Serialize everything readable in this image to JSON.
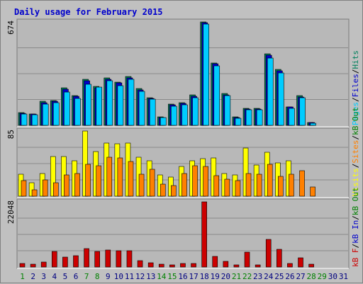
{
  "colors": {
    "background": "#c0c0c0",
    "panel": "#b8b8b8",
    "grid": "#8a8a8a",
    "title": "#0000cc",
    "hits": "#00805c",
    "files": "#0000cc",
    "pages": "#00ccff",
    "visits": "#ffff00",
    "sites": "#ff8000",
    "kb_out": "#008000",
    "kb_in": "#0000cc",
    "kb_f": "#cc0000",
    "weekend": "#008000",
    "weekday": "#000080"
  },
  "chart_data": {
    "type": "bar",
    "title": "Daily usage for February 2015",
    "days": [
      "1",
      "2",
      "3",
      "4",
      "5",
      "6",
      "7",
      "8",
      "9",
      "10",
      "11",
      "12",
      "13",
      "14",
      "15",
      "16",
      "17",
      "18",
      "19",
      "20",
      "21",
      "22",
      "23",
      "24",
      "25",
      "26",
      "27",
      "28",
      "29",
      "30",
      "31"
    ],
    "weekend_days": [
      "1",
      "7",
      "8",
      "14",
      "15",
      "21",
      "22",
      "28",
      "29"
    ],
    "panels": [
      {
        "axis_max_label": "674",
        "ymax": 674,
        "legend": [
          {
            "label": "Pages",
            "color": "#00ccff"
          },
          {
            "label": "/",
            "color": "#000000"
          },
          {
            "label": "Files",
            "color": "#0000cc"
          },
          {
            "label": "/",
            "color": "#000000"
          },
          {
            "label": "Hits",
            "color": "#00805c"
          }
        ],
        "series": [
          {
            "name": "Hits",
            "color": "#00805c",
            "values": [
              84,
              75,
              155,
              162,
              243,
              194,
              299,
              253,
              307,
              281,
              319,
              238,
              181,
              55,
              137,
              148,
              198,
              674,
              407,
              207,
              55,
              111,
              110,
              468,
              367,
              122,
              192,
              20,
              0,
              0,
              0
            ]
          },
          {
            "name": "Files",
            "color": "#0000cc",
            "values": [
              80,
              72,
              150,
              158,
              235,
              188,
              290,
              245,
              300,
              275,
              310,
              232,
              176,
              52,
              132,
              142,
              190,
              668,
              400,
              200,
              52,
              108,
              107,
              456,
              356,
              118,
              186,
              18,
              0,
              0,
              0
            ]
          },
          {
            "name": "Pages",
            "color": "#00ccff",
            "values": [
              75,
              68,
              140,
              150,
              215,
              175,
              270,
              248,
              290,
              260,
              300,
              220,
              170,
              50,
              125,
              135,
              180,
              660,
              390,
              195,
              45,
              100,
              100,
              440,
              340,
              112,
              180,
              15,
              0,
              0,
              0
            ]
          }
        ]
      },
      {
        "axis_max_label": "85",
        "ymax": 85,
        "legend": [
          {
            "label": "Visits",
            "color": "#ffff00"
          },
          {
            "label": "/",
            "color": "#000000"
          },
          {
            "label": "Sites",
            "color": "#ff8000"
          },
          {
            "label": "/",
            "color": "#000000"
          },
          {
            "label": "kB Out",
            "color": "#008000"
          }
        ],
        "series": [
          {
            "name": "Visits",
            "color": "#ffff00",
            "values": [
              29,
              18,
              30,
              52,
              52,
              46,
              85,
              58,
              69,
              68,
              69,
              51,
              46,
              28,
              25,
              39,
              46,
              49,
              50,
              30,
              28,
              63,
              41,
              57,
              43,
              46,
              0,
              0,
              0,
              0,
              0
            ]
          },
          {
            "name": "Sites",
            "color": "#ff8000",
            "values": [
              20,
              8,
              21,
              18,
              28,
              30,
              42,
              40,
              51,
              50,
              45,
              29,
              35,
              16,
              14,
              30,
              40,
              39,
              27,
              22,
              20,
              30,
              29,
              42,
              26,
              29,
              33,
              12,
              0,
              0,
              0
            ]
          }
        ]
      },
      {
        "axis_max_label": "22048",
        "ymax": 22048,
        "legend": [
          {
            "label": "kB F",
            "color": "#cc0000"
          },
          {
            "label": "/",
            "color": "#000000"
          },
          {
            "label": "kB In",
            "color": "#0000cc"
          },
          {
            "label": "/",
            "color": "#000000"
          },
          {
            "label": "kB Out",
            "color": "#008000"
          }
        ],
        "series": [
          {
            "name": "kB F",
            "color": "#cc0000",
            "values": [
              1300,
              1000,
              1700,
              5300,
              3300,
              3800,
              6300,
              5300,
              5800,
              5600,
              5600,
              2100,
              1400,
              1000,
              800,
              1200,
              1300,
              22048,
              3600,
              2000,
              800,
              5100,
              800,
              9400,
              6000,
              1200,
              3100,
              1000,
              0,
              0,
              0
            ]
          }
        ]
      }
    ]
  }
}
